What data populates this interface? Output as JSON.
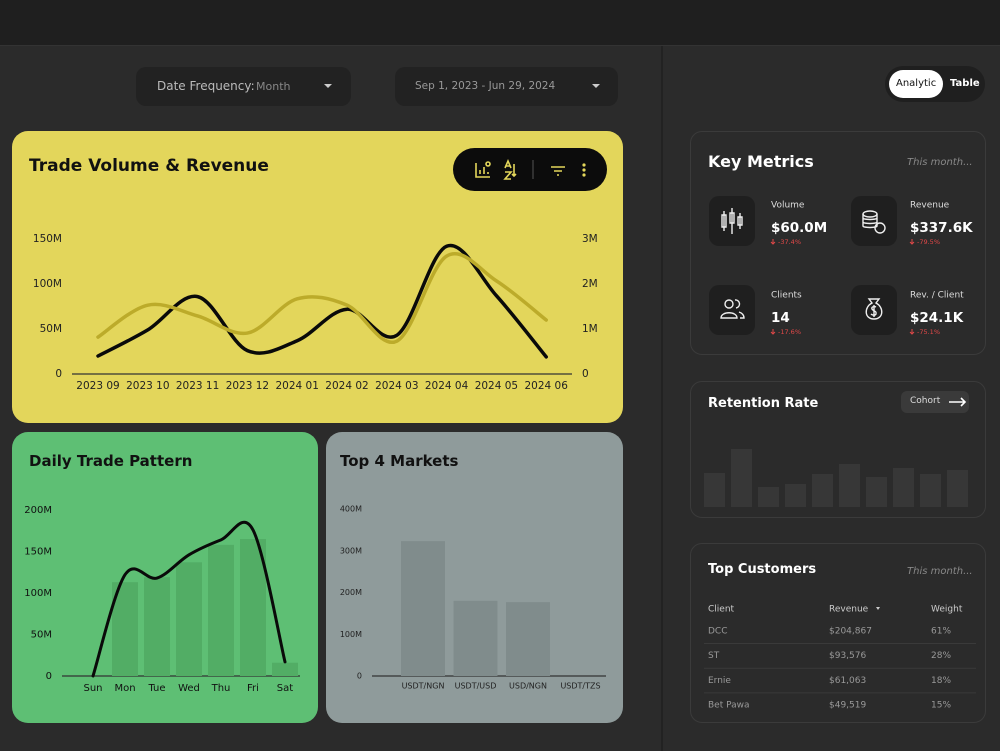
{
  "filters": {
    "date_frequency_label": "Date Frequency:",
    "date_frequency_value": "Month",
    "date_range": "Sep 1, 2023 - Jun 29, 2024"
  },
  "view_toggle": [
    "Analytic",
    "Table"
  ],
  "chart_data": [
    {
      "type": "line",
      "title": "Trade Volume & Revenue",
      "categories": [
        "2023 09",
        "2023 10",
        "2023 11",
        "2023 12",
        "2024 01",
        "2024 02",
        "2024 03",
        "2024 04",
        "2024 05",
        "2024 06"
      ],
      "series": [
        {
          "color": "#0a0a0a",
          "values": [
            20000000,
            49000000,
            86000000,
            26000000,
            37000000,
            72000000,
            43000000,
            142000000,
            87000000,
            19000000
          ]
        },
        {
          "color": "#bcab2a",
          "axis": "y2",
          "values": [
            820000,
            1530000,
            1290000,
            910000,
            1670000,
            1530000,
            730000,
            2620000,
            2070000,
            1200000
          ]
        }
      ],
      "ylim": [
        0,
        150000000
      ],
      "yticks": [
        0,
        {
          "value": 50000000,
          "label": "50M"
        },
        {
          "value": 100000000,
          "label": "100M"
        },
        {
          "value": 150000000,
          "label": "150M"
        }
      ],
      "y2lim": [
        0,
        3000000
      ],
      "y2ticks": [
        0,
        {
          "value": 1000000,
          "label": "1M"
        },
        {
          "value": 2000000,
          "label": "2M"
        },
        {
          "value": 3000000,
          "label": "3M"
        }
      ]
    },
    {
      "type": "bar",
      "title": "Daily Trade Pattern",
      "categories": [
        "Sun",
        "Mon",
        "Tue",
        "Wed",
        "Thu",
        "Fri",
        "Sat"
      ],
      "series": [
        {
          "type": "bar",
          "color": "#52ad65",
          "values": [
            0,
            113000000,
            119000000,
            137000000,
            158000000,
            165000000,
            16000000
          ]
        },
        {
          "type": "line",
          "color": "#0a0a0a",
          "values": [
            0,
            122000000,
            118000000,
            146000000,
            164000000,
            176000000,
            17000000
          ]
        }
      ],
      "ylim": [
        0,
        200000000
      ],
      "yticks": [
        0,
        {
          "value": 50000000,
          "label": "50M"
        },
        {
          "value": 100000000,
          "label": "100M"
        },
        {
          "value": 150000000,
          "label": "150M"
        },
        {
          "value": 200000000,
          "label": "200M"
        }
      ]
    },
    {
      "type": "bar",
      "title": "Top 4 Markets",
      "categories": [
        "USDT/NGN",
        "USDT/USD",
        "USD/NGN",
        "USDT/TZS"
      ],
      "values": [
        323000000,
        180000000,
        177000000,
        0
      ],
      "color": "#808c8c",
      "ylim": [
        0,
        400000000
      ],
      "yticks": [
        0,
        {
          "value": 100000000,
          "label": "100M"
        },
        {
          "value": 200000000,
          "label": "200M"
        },
        {
          "value": 300000000,
          "label": "300M"
        },
        {
          "value": 400000000,
          "label": "400M"
        }
      ]
    },
    {
      "type": "bar",
      "title": "Retention Rate",
      "button": "Cohort",
      "values": [
        34,
        58,
        20,
        23,
        33,
        43,
        30,
        39,
        33,
        37
      ],
      "color": "#373737"
    }
  ],
  "key_metrics": {
    "title": "Key Metrics",
    "period": "This month...",
    "items": [
      {
        "label": "Volume",
        "value": "$60.0M",
        "change": "-37.4%"
      },
      {
        "label": "Revenue",
        "value": "$337.6K",
        "change": "-79.5%"
      },
      {
        "label": "Clients",
        "value": "14",
        "change": "-17.6%"
      },
      {
        "label": "Rev. / Client",
        "value": "$24.1K",
        "change": "-75.1%"
      }
    ]
  },
  "top_customers": {
    "title": "Top Customers",
    "period": "This month...",
    "columns": [
      "Client",
      "Revenue",
      "Weight"
    ],
    "rows": [
      [
        "DCC",
        "$204,867",
        "61%"
      ],
      [
        "ST",
        "$93,576",
        "28%"
      ],
      [
        "Ernie",
        "$61,063",
        "18%"
      ],
      [
        "Bet Pawa",
        "$49,519",
        "15%"
      ]
    ]
  }
}
